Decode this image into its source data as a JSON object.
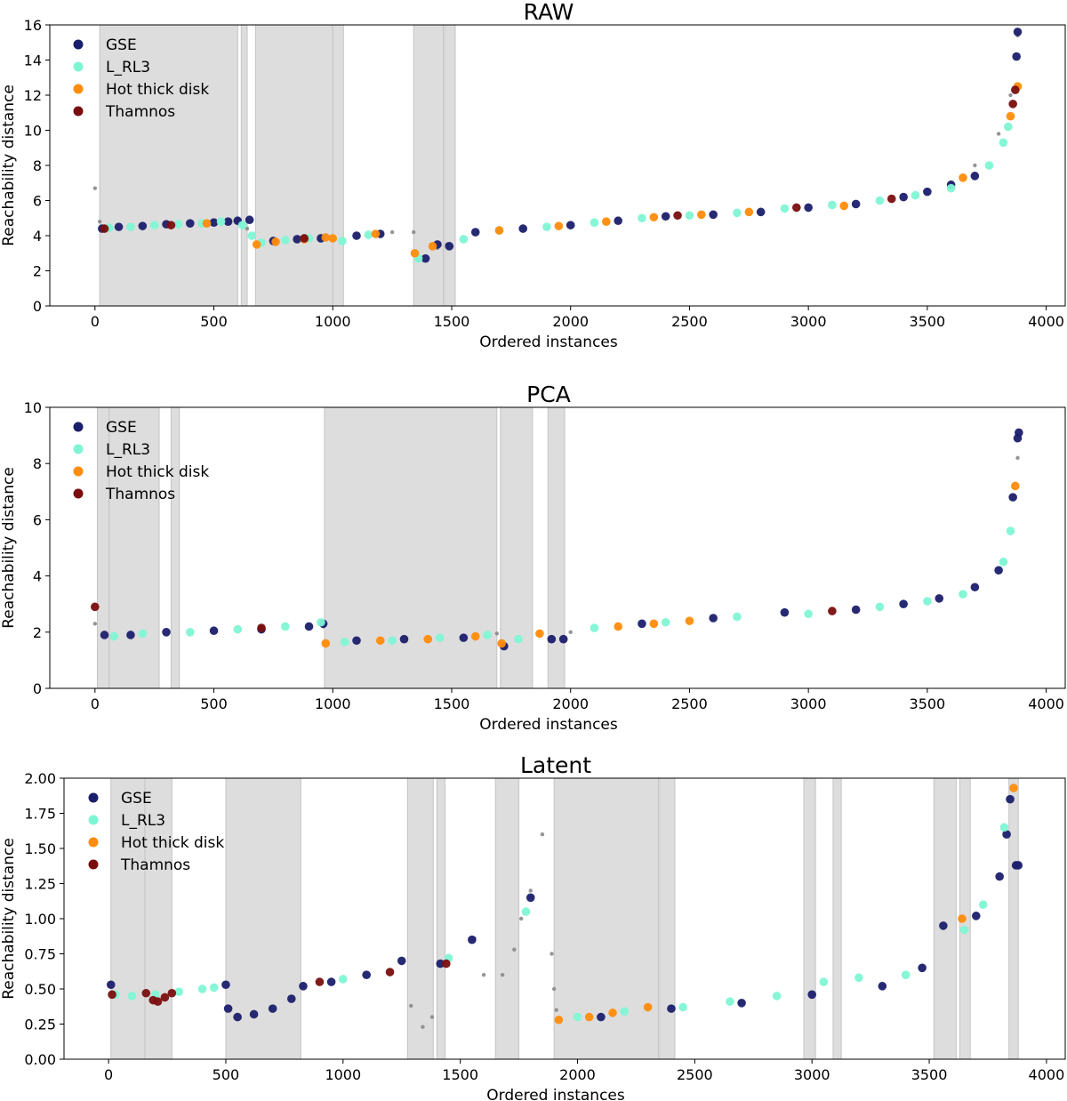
{
  "figure_title": "",
  "legend": [
    {
      "label": "GSE",
      "color": "#1b1f6b"
    },
    {
      "label": "L_RL3",
      "color": "#7ff5d4"
    },
    {
      "label": "Hot thick disk",
      "color": "#ff8c0a"
    },
    {
      "label": "Thamnos",
      "color": "#7a0e0e"
    }
  ],
  "colors": {
    "shade": "#dddddd",
    "noise": "#8a8a8a",
    "minor": [
      "#e040e0",
      "#9ad13a",
      "#7070e0"
    ]
  },
  "chart_data": [
    {
      "type": "scatter",
      "title": "RAW",
      "xlabel": "Ordered instances",
      "ylabel": "Reachability distance",
      "xlim": [
        -190,
        4080
      ],
      "ylim": [
        0,
        16
      ],
      "xticks": [
        0,
        500,
        1000,
        1500,
        2000,
        2500,
        3000,
        3500,
        4000
      ],
      "yticks": [
        0,
        2,
        4,
        6,
        8,
        10,
        12,
        14,
        16
      ],
      "ytick_labels": [
        "0",
        "2",
        "4",
        "6",
        "8",
        "10",
        "12",
        "14",
        "16"
      ],
      "shaded_regions": [
        [
          20,
          600
        ],
        [
          615,
          640
        ],
        [
          675,
          1000
        ],
        [
          1000,
          1045
        ],
        [
          1340,
          1465
        ],
        [
          1470,
          1515
        ]
      ],
      "series": [
        {
          "name": "noise",
          "x": [
            0,
            20,
            600,
            640,
            1250,
            1340,
            1360,
            1440,
            1480,
            3700,
            3800,
            3850,
            3880
          ],
          "y": [
            6.7,
            4.8,
            4.9,
            4.4,
            4.2,
            4.2,
            2.6,
            3.3,
            3.5,
            8.0,
            9.8,
            12.0,
            15.4
          ]
        },
        {
          "name": "GSE",
          "x": [
            30,
            100,
            200,
            300,
            400,
            500,
            560,
            600,
            650,
            750,
            850,
            950,
            1100,
            1200,
            1390,
            1440,
            1490,
            1600,
            1800,
            2000,
            2200,
            2400,
            2600,
            2800,
            3000,
            3200,
            3400,
            3500,
            3600,
            3700,
            3875,
            3880
          ],
          "y": [
            4.4,
            4.5,
            4.55,
            4.65,
            4.7,
            4.75,
            4.8,
            4.85,
            4.9,
            3.7,
            3.8,
            3.85,
            4.0,
            4.1,
            2.7,
            3.5,
            3.4,
            4.2,
            4.4,
            4.6,
            4.85,
            5.1,
            5.2,
            5.35,
            5.6,
            5.8,
            6.2,
            6.5,
            6.9,
            7.4,
            14.2,
            15.6
          ]
        },
        {
          "name": "L_RL3",
          "x": [
            60,
            150,
            250,
            350,
            450,
            530,
            620,
            660,
            700,
            800,
            900,
            1040,
            1150,
            1360,
            1550,
            1700,
            1900,
            2100,
            2300,
            2500,
            2700,
            2900,
            3100,
            3300,
            3450,
            3600,
            3760,
            3820,
            3840
          ],
          "y": [
            4.45,
            4.5,
            4.6,
            4.65,
            4.7,
            4.8,
            4.6,
            4.0,
            3.6,
            3.75,
            3.85,
            3.7,
            4.05,
            2.7,
            3.8,
            4.3,
            4.5,
            4.75,
            5.0,
            5.15,
            5.3,
            5.55,
            5.75,
            6.0,
            6.3,
            6.7,
            8.0,
            9.3,
            10.2
          ]
        },
        {
          "name": "Hot thick disk",
          "x": [
            470,
            680,
            760,
            880,
            970,
            1000,
            1180,
            1345,
            1420,
            1700,
            1950,
            2150,
            2350,
            2550,
            2750,
            3150,
            3650,
            3850,
            3880
          ],
          "y": [
            4.7,
            3.5,
            3.65,
            3.8,
            3.9,
            3.85,
            4.1,
            3.0,
            3.4,
            4.3,
            4.55,
            4.8,
            5.05,
            5.2,
            5.35,
            5.7,
            7.3,
            10.8,
            12.5
          ]
        },
        {
          "name": "Thamnos",
          "x": [
            40,
            320,
            880,
            2450,
            2950,
            3350,
            3860,
            3870
          ],
          "y": [
            4.4,
            4.6,
            3.85,
            5.15,
            5.6,
            6.1,
            11.5,
            12.3
          ]
        }
      ]
    },
    {
      "type": "scatter",
      "title": "PCA",
      "xlabel": "Ordered instances",
      "ylabel": "Reachability distance",
      "xlim": [
        -190,
        4080
      ],
      "ylim": [
        0,
        10
      ],
      "xticks": [
        0,
        500,
        1000,
        1500,
        2000,
        2500,
        3000,
        3500,
        4000
      ],
      "yticks": [
        0,
        2,
        4,
        6,
        8,
        10
      ],
      "ytick_labels": [
        "0",
        "2",
        "4",
        "6",
        "8",
        "10"
      ],
      "shaded_regions": [
        [
          10,
          60
        ],
        [
          60,
          270
        ],
        [
          320,
          355
        ],
        [
          965,
          1690
        ],
        [
          1705,
          1840
        ],
        [
          1905,
          1975
        ]
      ],
      "series": [
        {
          "name": "noise",
          "x": [
            0,
            960,
            1690,
            2000,
            3880
          ],
          "y": [
            2.3,
            2.2,
            1.95,
            2.0,
            8.2
          ]
        },
        {
          "name": "GSE",
          "x": [
            40,
            150,
            300,
            500,
            700,
            900,
            960,
            1100,
            1300,
            1550,
            1720,
            1920,
            1970,
            2300,
            2600,
            2900,
            3200,
            3400,
            3550,
            3700,
            3800,
            3860,
            3880,
            3885
          ],
          "y": [
            1.9,
            1.9,
            2.0,
            2.05,
            2.1,
            2.2,
            2.3,
            1.7,
            1.75,
            1.8,
            1.5,
            1.75,
            1.75,
            2.3,
            2.5,
            2.7,
            2.8,
            3.0,
            3.2,
            3.6,
            4.2,
            6.8,
            8.9,
            9.1
          ]
        },
        {
          "name": "L_RL3",
          "x": [
            80,
            200,
            400,
            600,
            800,
            950,
            1050,
            1250,
            1450,
            1650,
            1780,
            2100,
            2400,
            2700,
            3000,
            3300,
            3500,
            3650,
            3820,
            3850
          ],
          "y": [
            1.85,
            1.95,
            2.0,
            2.1,
            2.2,
            2.35,
            1.65,
            1.7,
            1.8,
            1.9,
            1.75,
            2.15,
            2.35,
            2.55,
            2.65,
            2.9,
            3.1,
            3.35,
            4.5,
            5.6
          ]
        },
        {
          "name": "Hot thick disk",
          "x": [
            970,
            1200,
            1400,
            1600,
            1710,
            1870,
            2200,
            2350,
            2500,
            3870
          ],
          "y": [
            1.6,
            1.7,
            1.75,
            1.85,
            1.6,
            1.95,
            2.2,
            2.3,
            2.4,
            7.2
          ]
        },
        {
          "name": "Thamnos",
          "x": [
            0,
            700,
            3100
          ],
          "y": [
            2.9,
            2.15,
            2.75
          ]
        }
      ]
    },
    {
      "type": "scatter",
      "title": "Latent",
      "xlabel": "Ordered instances",
      "ylabel": "Reachability distance",
      "xlim": [
        -190,
        4080
      ],
      "ylim": [
        0,
        2
      ],
      "xticks": [
        0,
        500,
        1000,
        1500,
        2000,
        2500,
        3000,
        3500,
        4000
      ],
      "yticks": [
        0,
        0.25,
        0.5,
        0.75,
        1.0,
        1.25,
        1.5,
        1.75,
        2.0
      ],
      "ytick_labels": [
        "0.00",
        "0.25",
        "0.50",
        "0.75",
        "1.00",
        "1.25",
        "1.50",
        "1.75",
        "2.00"
      ],
      "shaded_regions": [
        [
          10,
          155
        ],
        [
          155,
          270
        ],
        [
          500,
          820
        ],
        [
          1275,
          1385
        ],
        [
          1400,
          1435
        ],
        [
          1650,
          1750
        ],
        [
          1900,
          2345
        ],
        [
          2350,
          2415
        ],
        [
          2965,
          3015
        ],
        [
          3090,
          3125
        ],
        [
          3520,
          3615
        ],
        [
          3630,
          3675
        ],
        [
          3840,
          3880
        ]
      ],
      "series": [
        {
          "name": "noise",
          "x": [
            1290,
            1340,
            1380,
            1560,
            1600,
            1680,
            1730,
            1760,
            1800,
            1850,
            1890,
            1900,
            1910
          ],
          "y": [
            0.38,
            0.23,
            0.3,
            0.86,
            0.6,
            0.6,
            0.78,
            1.0,
            1.2,
            1.6,
            0.75,
            0.5,
            0.35
          ]
        },
        {
          "name": "GSE",
          "x": [
            10,
            500,
            510,
            550,
            620,
            700,
            780,
            830,
            950,
            1100,
            1250,
            1415,
            1550,
            1800,
            2100,
            2400,
            2700,
            3000,
            3300,
            3470,
            3560,
            3700,
            3800,
            3830,
            3845,
            3870,
            3880
          ],
          "y": [
            0.53,
            0.53,
            0.36,
            0.3,
            0.32,
            0.36,
            0.43,
            0.52,
            0.55,
            0.6,
            0.7,
            0.68,
            0.85,
            1.15,
            0.3,
            0.36,
            0.4,
            0.46,
            0.52,
            0.65,
            0.95,
            1.02,
            1.3,
            1.6,
            1.85,
            1.38,
            1.38
          ]
        },
        {
          "name": "L_RL3",
          "x": [
            30,
            100,
            200,
            300,
            400,
            450,
            1000,
            1450,
            1780,
            2000,
            2200,
            2450,
            2650,
            2850,
            3050,
            3200,
            3400,
            3650,
            3730,
            3820
          ],
          "y": [
            0.46,
            0.45,
            0.46,
            0.48,
            0.5,
            0.51,
            0.57,
            0.72,
            1.05,
            0.3,
            0.34,
            0.37,
            0.41,
            0.45,
            0.55,
            0.58,
            0.6,
            0.92,
            1.1,
            1.65
          ]
        },
        {
          "name": "Hot thick disk",
          "x": [
            1920,
            2050,
            2150,
            2300,
            3640,
            3860
          ],
          "y": [
            0.28,
            0.3,
            0.33,
            0.37,
            1.0,
            1.93
          ]
        },
        {
          "name": "Thamnos",
          "x": [
            15,
            160,
            190,
            210,
            240,
            270,
            900,
            1440,
            1200
          ],
          "y": [
            0.46,
            0.47,
            0.42,
            0.41,
            0.44,
            0.47,
            0.55,
            0.68,
            0.62
          ]
        }
      ]
    }
  ]
}
